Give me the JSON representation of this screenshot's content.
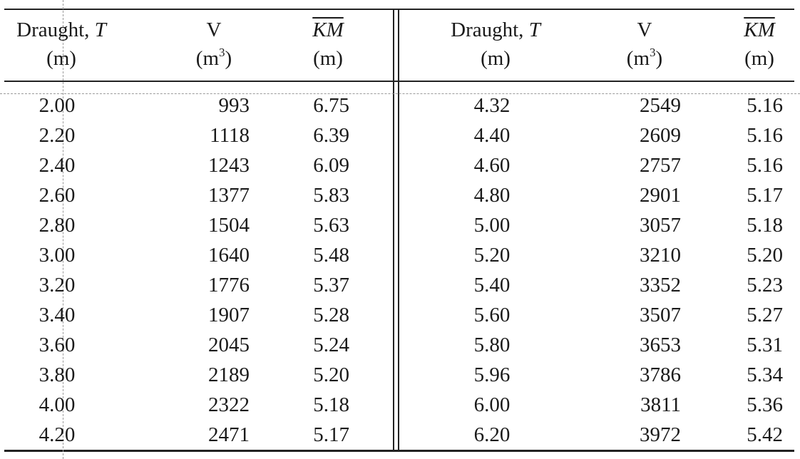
{
  "header": {
    "left": {
      "draught": {
        "line1": "Draught, ",
        "var": "T",
        "unit": "(m)"
      },
      "volume": {
        "line1": "V",
        "unit_pre": "(m",
        "unit_sup": "3",
        "unit_post": ")"
      },
      "km": {
        "symbol": "KM",
        "unit": "(m)"
      }
    },
    "right": {
      "draught": {
        "line1": "Draught, ",
        "var": "T",
        "unit": "(m)"
      },
      "volume": {
        "line1": "V",
        "unit_pre": "(m",
        "unit_sup": "3",
        "unit_post": ")"
      },
      "km": {
        "symbol": "KM",
        "unit": "(m)"
      }
    }
  },
  "rows": [
    {
      "t1": "2.00",
      "v1": "993",
      "k1": "6.75",
      "t2": "4.32",
      "v2": "2549",
      "k2": "5.16"
    },
    {
      "t1": "2.20",
      "v1": "1118",
      "k1": "6.39",
      "t2": "4.40",
      "v2": "2609",
      "k2": "5.16"
    },
    {
      "t1": "2.40",
      "v1": "1243",
      "k1": "6.09",
      "t2": "4.60",
      "v2": "2757",
      "k2": "5.16"
    },
    {
      "t1": "2.60",
      "v1": "1377",
      "k1": "5.83",
      "t2": "4.80",
      "v2": "2901",
      "k2": "5.17"
    },
    {
      "t1": "2.80",
      "v1": "1504",
      "k1": "5.63",
      "t2": "5.00",
      "v2": "3057",
      "k2": "5.18"
    },
    {
      "t1": "3.00",
      "v1": "1640",
      "k1": "5.48",
      "t2": "5.20",
      "v2": "3210",
      "k2": "5.20"
    },
    {
      "t1": "3.20",
      "v1": "1776",
      "k1": "5.37",
      "t2": "5.40",
      "v2": "3352",
      "k2": "5.23"
    },
    {
      "t1": "3.40",
      "v1": "1907",
      "k1": "5.28",
      "t2": "5.60",
      "v2": "3507",
      "k2": "5.27"
    },
    {
      "t1": "3.60",
      "v1": "2045",
      "k1": "5.24",
      "t2": "5.80",
      "v2": "3653",
      "k2": "5.31"
    },
    {
      "t1": "3.80",
      "v1": "2189",
      "k1": "5.20",
      "t2": "5.96",
      "v2": "3786",
      "k2": "5.34"
    },
    {
      "t1": "4.00",
      "v1": "2322",
      "k1": "5.18",
      "t2": "6.00",
      "v2": "3811",
      "k2": "5.36"
    },
    {
      "t1": "4.20",
      "v1": "2471",
      "k1": "5.17",
      "t2": "6.20",
      "v2": "3972",
      "k2": "5.42"
    }
  ]
}
